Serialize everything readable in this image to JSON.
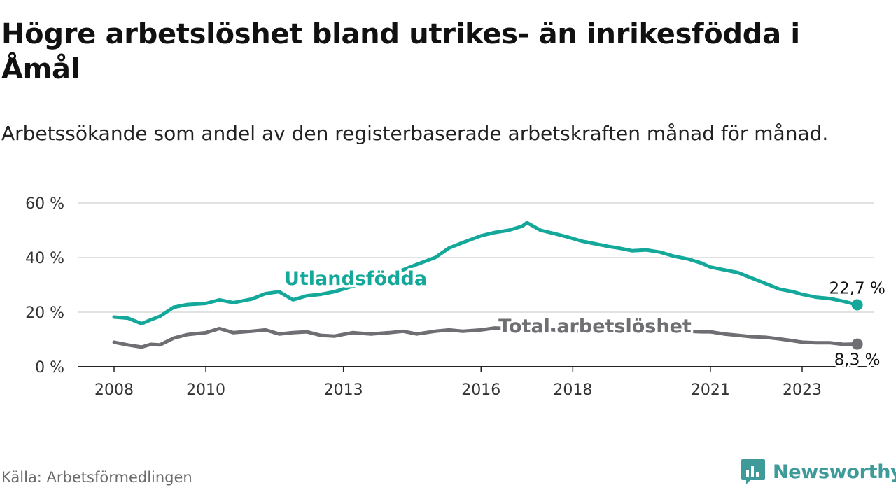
{
  "title": "Högre arbetslöshet bland utrikes- än inrikesfödda i Åmål",
  "subtitle": "Arbetssökande som andel av den registerbaserade arbetskraften månad för månad.",
  "source": "Källa: Arbetsförmedlingen",
  "brand": "Newsworthy",
  "colors": {
    "foreign": "#13a89a",
    "total": "#6e6e73",
    "grid": "#d9d9d9",
    "axis": "#222222",
    "brand": "#3f9a9a"
  },
  "chart_data": {
    "type": "line",
    "title": "Högre arbetslöshet bland utrikes- än inrikesfödda i Åmål",
    "xlabel": "",
    "ylabel": "",
    "ylim": [
      0,
      60
    ],
    "xlim": [
      2008,
      2024.7
    ],
    "y_ticks": [
      0,
      20,
      40,
      60
    ],
    "y_tick_labels": [
      "0 %",
      "20 %",
      "40 %",
      "60 %"
    ],
    "x_ticks": [
      2008,
      2010,
      2013,
      2016,
      2018,
      2021,
      2023
    ],
    "x_tick_labels": [
      "2008",
      "2010",
      "2013",
      "2016",
      "2018",
      "2021",
      "2023"
    ],
    "series": [
      {
        "name": "Utlandsfödda",
        "label": "Utlandsfödda",
        "color": "#13a89a",
        "end_label": "22,7 %",
        "x": [
          2008.0,
          2008.3,
          2008.6,
          2008.8,
          2009.0,
          2009.3,
          2009.6,
          2010.0,
          2010.3,
          2010.6,
          2011.0,
          2011.3,
          2011.6,
          2011.9,
          2012.2,
          2012.5,
          2012.8,
          2013.2,
          2013.6,
          2014.0,
          2014.3,
          2014.6,
          2015.0,
          2015.3,
          2015.6,
          2016.0,
          2016.3,
          2016.6,
          2016.9,
          2017.0,
          2017.3,
          2017.6,
          2017.9,
          2018.2,
          2018.5,
          2018.8,
          2019.0,
          2019.3,
          2019.6,
          2019.9,
          2020.2,
          2020.5,
          2020.8,
          2021.0,
          2021.3,
          2021.6,
          2021.9,
          2022.2,
          2022.5,
          2022.8,
          2023.0,
          2023.3,
          2023.6,
          2023.9,
          2024.2
        ],
        "values": [
          18.2,
          17.8,
          15.8,
          17.2,
          18.5,
          21.8,
          22.8,
          23.2,
          24.5,
          23.5,
          24.8,
          26.8,
          27.5,
          24.5,
          26.0,
          26.5,
          27.5,
          29.5,
          31.5,
          33.5,
          35.5,
          37.5,
          40.0,
          43.5,
          45.5,
          48.0,
          49.2,
          50.0,
          51.5,
          52.8,
          50.0,
          48.8,
          47.5,
          46.0,
          45.0,
          44.0,
          43.5,
          42.5,
          42.8,
          42.0,
          40.5,
          39.5,
          38.0,
          36.5,
          35.5,
          34.5,
          32.5,
          30.5,
          28.5,
          27.5,
          26.5,
          25.5,
          25.0,
          24.0,
          22.7
        ]
      },
      {
        "name": "Total arbetslöshet",
        "label": "Total arbetslöshet",
        "color": "#6e6e73",
        "end_label": "8,3 %",
        "x": [
          2008.0,
          2008.3,
          2008.6,
          2008.8,
          2009.0,
          2009.3,
          2009.6,
          2010.0,
          2010.3,
          2010.6,
          2011.0,
          2011.3,
          2011.6,
          2011.9,
          2012.2,
          2012.5,
          2012.8,
          2013.2,
          2013.6,
          2014.0,
          2014.3,
          2014.6,
          2015.0,
          2015.3,
          2015.6,
          2016.0,
          2016.3,
          2016.6,
          2016.9,
          2017.0,
          2017.3,
          2017.6,
          2017.9,
          2018.2,
          2018.5,
          2018.8,
          2019.0,
          2019.3,
          2019.6,
          2019.9,
          2020.2,
          2020.5,
          2020.8,
          2021.0,
          2021.3,
          2021.6,
          2021.9,
          2022.2,
          2022.5,
          2022.8,
          2023.0,
          2023.3,
          2023.6,
          2023.9,
          2024.2
        ],
        "values": [
          9.0,
          8.0,
          7.2,
          8.2,
          8.0,
          10.5,
          11.8,
          12.5,
          14.0,
          12.5,
          13.0,
          13.5,
          12.0,
          12.5,
          12.8,
          11.5,
          11.2,
          12.5,
          12.0,
          12.5,
          13.0,
          12.0,
          13.0,
          13.5,
          13.0,
          13.5,
          14.2,
          14.0,
          13.8,
          14.2,
          14.0,
          13.5,
          13.2,
          13.0,
          13.5,
          13.8,
          14.0,
          13.5,
          13.2,
          13.5,
          13.2,
          13.0,
          12.8,
          12.8,
          12.0,
          11.5,
          11.0,
          10.8,
          10.2,
          9.5,
          9.0,
          8.8,
          8.8,
          8.2,
          8.3
        ]
      }
    ]
  }
}
